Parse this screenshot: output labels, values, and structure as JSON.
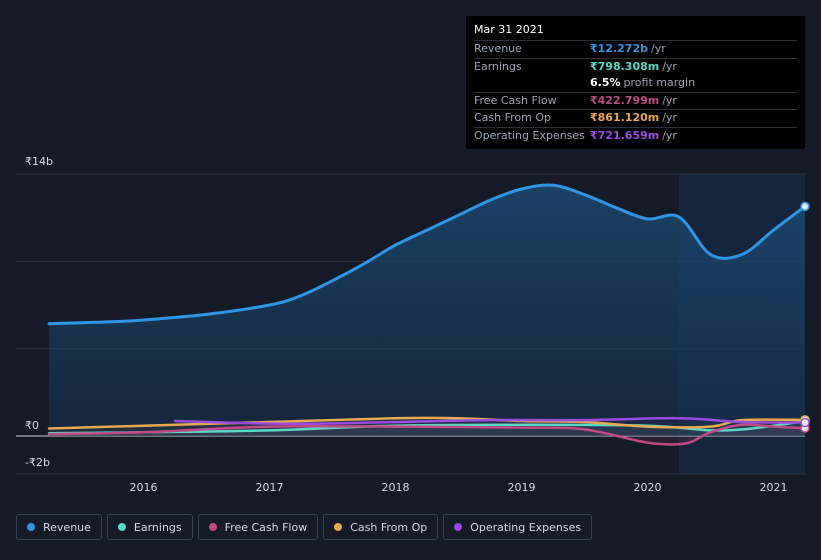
{
  "chart_data": {
    "type": "area",
    "y_ticks": [
      {
        "label": "₹14b",
        "value": 14
      },
      {
        "label": "₹0",
        "value": 0
      },
      {
        "label": "-₹2b",
        "value": -2
      }
    ],
    "ylim": [
      -2,
      14
    ],
    "xlim": [
      2015.25,
      2021.25
    ],
    "x_ticks": [
      {
        "label": "2016",
        "value": 2016
      },
      {
        "label": "2017",
        "value": 2017
      },
      {
        "label": "2018",
        "value": 2018
      },
      {
        "label": "2019",
        "value": 2019
      },
      {
        "label": "2020",
        "value": 2020
      },
      {
        "label": "2021",
        "value": 2021
      }
    ],
    "forecast_start": 2020.25,
    "series": [
      {
        "name": "Revenue",
        "color": "#2f96e6",
        "fill": true,
        "points": [
          [
            2015.25,
            6.0
          ],
          [
            2015.75,
            6.1
          ],
          [
            2016.0,
            6.2
          ],
          [
            2016.5,
            6.5
          ],
          [
            2017.0,
            7.0
          ],
          [
            2017.25,
            7.5
          ],
          [
            2017.5,
            8.3
          ],
          [
            2017.75,
            9.2
          ],
          [
            2018.0,
            10.2
          ],
          [
            2018.25,
            11.0
          ],
          [
            2018.5,
            11.8
          ],
          [
            2018.75,
            12.6
          ],
          [
            2019.0,
            13.2
          ],
          [
            2019.25,
            13.4
          ],
          [
            2019.5,
            12.9
          ],
          [
            2019.75,
            12.2
          ],
          [
            2020.0,
            11.6
          ],
          [
            2020.25,
            11.7
          ],
          [
            2020.5,
            9.7
          ],
          [
            2020.75,
            9.7
          ],
          [
            2021.0,
            11.0
          ],
          [
            2021.25,
            12.27
          ]
        ]
      },
      {
        "name": "Earnings",
        "color": "#5ad8c8",
        "fill": false,
        "points": [
          [
            2015.25,
            0.15
          ],
          [
            2016.0,
            0.2
          ],
          [
            2017.0,
            0.3
          ],
          [
            2018.0,
            0.55
          ],
          [
            2019.0,
            0.6
          ],
          [
            2020.0,
            0.55
          ],
          [
            2020.5,
            0.3
          ],
          [
            2020.75,
            0.35
          ],
          [
            2021.0,
            0.55
          ],
          [
            2021.25,
            0.8
          ]
        ]
      },
      {
        "name": "Free Cash Flow",
        "color": "#c04a86",
        "fill": false,
        "points": [
          [
            2015.25,
            0.1
          ],
          [
            2016.0,
            0.2
          ],
          [
            2017.0,
            0.5
          ],
          [
            2018.0,
            0.5
          ],
          [
            2019.0,
            0.45
          ],
          [
            2019.5,
            0.35
          ],
          [
            2020.0,
            -0.35
          ],
          [
            2020.3,
            -0.4
          ],
          [
            2020.5,
            0.2
          ],
          [
            2020.75,
            0.6
          ],
          [
            2021.0,
            0.5
          ],
          [
            2021.25,
            0.42
          ]
        ]
      },
      {
        "name": "Cash From Op",
        "color": "#e8a951",
        "fill": false,
        "points": [
          [
            2015.25,
            0.4
          ],
          [
            2016.0,
            0.55
          ],
          [
            2017.0,
            0.75
          ],
          [
            2018.0,
            0.95
          ],
          [
            2018.5,
            0.95
          ],
          [
            2019.0,
            0.8
          ],
          [
            2019.5,
            0.75
          ],
          [
            2020.0,
            0.5
          ],
          [
            2020.5,
            0.5
          ],
          [
            2020.75,
            0.85
          ],
          [
            2021.25,
            0.86
          ]
        ]
      },
      {
        "name": "Operating Expenses",
        "color": "#9a4be0",
        "fill": false,
        "points": [
          [
            2016.25,
            0.8
          ],
          [
            2016.75,
            0.7
          ],
          [
            2017.25,
            0.65
          ],
          [
            2018.0,
            0.75
          ],
          [
            2018.75,
            0.85
          ],
          [
            2019.5,
            0.85
          ],
          [
            2020.25,
            0.95
          ],
          [
            2020.75,
            0.75
          ],
          [
            2021.25,
            0.72
          ]
        ]
      }
    ]
  },
  "tooltip": {
    "date": "Mar 31 2021",
    "rows": [
      {
        "label": "Revenue",
        "value": "₹12.272b",
        "unit": "/yr",
        "color": "#2f96e6"
      },
      {
        "label": "Earnings",
        "value": "₹798.308m",
        "unit": "/yr",
        "color": "#5ad8c8"
      }
    ],
    "margin": {
      "value": "6.5%",
      "text": "profit margin"
    },
    "rows2": [
      {
        "label": "Free Cash Flow",
        "value": "₹422.799m",
        "unit": "/yr",
        "color": "#c04a86"
      },
      {
        "label": "Cash From Op",
        "value": "₹861.120m",
        "unit": "/yr",
        "color": "#e8a951"
      },
      {
        "label": "Operating Expenses",
        "value": "₹721.659m",
        "unit": "/yr",
        "color": "#9a4be0"
      }
    ]
  },
  "legend": [
    {
      "label": "Revenue",
      "color": "#2f96e6"
    },
    {
      "label": "Earnings",
      "color": "#5ad8c8"
    },
    {
      "label": "Free Cash Flow",
      "color": "#c04a86"
    },
    {
      "label": "Cash From Op",
      "color": "#e8a951"
    },
    {
      "label": "Operating Expenses",
      "color": "#9a4be0"
    }
  ]
}
